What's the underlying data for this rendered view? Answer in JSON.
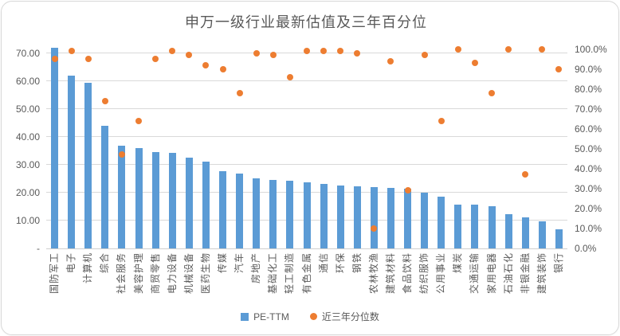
{
  "chart_data": {
    "type": "bar",
    "subtype": "combo-bar-scatter-dual-axis",
    "title": "申万一级行业最新估值及三年百分位",
    "categories": [
      "国防军工",
      "电子",
      "计算机",
      "综合",
      "社会服务",
      "美容护理",
      "商贸零售",
      "电力设备",
      "机械设备",
      "医药生物",
      "传媒",
      "汽车",
      "房地产",
      "基础化工",
      "轻工制造",
      "有色金属",
      "通信",
      "环保",
      "钢铁",
      "农林牧渔",
      "建筑材料",
      "食品饮料",
      "纺织服饰",
      "公用事业",
      "煤炭",
      "交通运输",
      "家用电器",
      "石油石化",
      "非银金融",
      "建筑装饰",
      "银行"
    ],
    "series": [
      {
        "name": "PE-TTM",
        "type": "bar",
        "axis": "left",
        "color": "#5B9BD5",
        "values": [
          71.8,
          62.0,
          59.3,
          43.9,
          36.7,
          36.0,
          34.6,
          34.3,
          32.6,
          31.0,
          27.6,
          26.7,
          25.2,
          24.5,
          24.1,
          23.6,
          23.0,
          22.5,
          22.2,
          21.9,
          21.8,
          21.5,
          19.9,
          18.4,
          15.7,
          15.6,
          15.1,
          12.4,
          11.0,
          9.8,
          6.8
        ]
      },
      {
        "name": "近三年分位数",
        "type": "scatter",
        "axis": "right",
        "color": "#ED7D31",
        "values_percent": [
          95,
          99,
          95,
          74,
          47,
          64,
          95,
          99,
          97,
          92,
          90,
          78,
          98,
          97,
          86,
          99,
          99,
          99,
          98,
          10,
          94,
          29,
          97,
          64,
          100,
          93,
          78,
          100,
          37,
          100,
          90
        ]
      }
    ],
    "left_axis": {
      "tick_labels": [
        "-",
        "10.00",
        "20.00",
        "30.00",
        "40.00",
        "50.00",
        "60.00",
        "70.00"
      ],
      "min": 0,
      "max": 75,
      "tick_step": 10
    },
    "right_axis": {
      "tick_labels": [
        "0.0%",
        "10.0%",
        "20.0%",
        "30.0%",
        "40.0%",
        "50.0%",
        "60.0%",
        "70.0%",
        "80.0%",
        "90.0%",
        "100.0%"
      ],
      "min": 0,
      "max": 105,
      "tick_step_percent": 10
    },
    "legend": [
      "PE-TTM",
      "近三年分位数"
    ],
    "legend_position": "bottom",
    "grid": true,
    "colors": {
      "bar": "#5B9BD5",
      "dot": "#ED7D31",
      "grid_line": "#D9D9D9",
      "axis_line": "#D0D0D0",
      "text": "#595959",
      "card_border": "#D8D8D8"
    }
  }
}
